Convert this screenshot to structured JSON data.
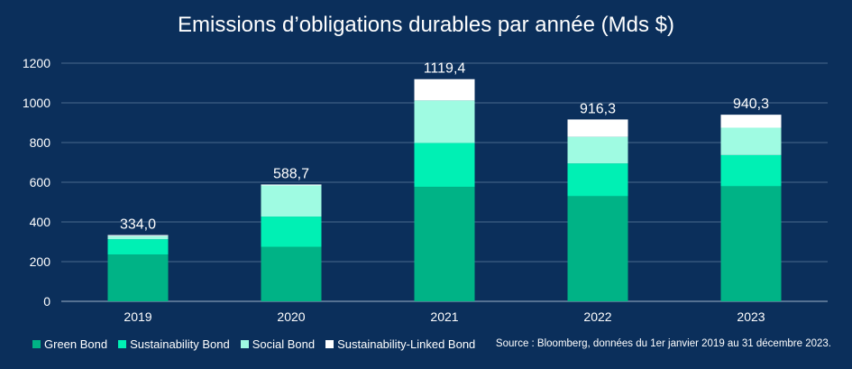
{
  "chart_data": {
    "type": "bar",
    "stacked": true,
    "title": "Emissions d’obligations durables par année (Mds $)",
    "categories": [
      "2019",
      "2020",
      "2021",
      "2022",
      "2023"
    ],
    "series": [
      {
        "name": "Green Bond",
        "color": "#00b386",
        "values": [
          236,
          275,
          577,
          530,
          580
        ]
      },
      {
        "name": "Sustainability Bond",
        "color": "#00f0b4",
        "values": [
          77,
          152,
          221,
          165,
          157
        ]
      },
      {
        "name": "Social Bond",
        "color": "#9ffbe2",
        "values": [
          16,
          157,
          214,
          134,
          138
        ]
      },
      {
        "name": "Sustainability-Linked Bond",
        "color": "#ffffff",
        "values": [
          5,
          4.7,
          107.4,
          87.3,
          65.3
        ]
      }
    ],
    "totals": [
      "334,0",
      "588,7",
      "1119,4",
      "916,3",
      "940,3"
    ],
    "y_ticks": [
      "0",
      "200",
      "400",
      "600",
      "800",
      "1000",
      "1200"
    ],
    "ylim": [
      0,
      1200
    ],
    "grid": true,
    "legend_position": "bottom-left"
  },
  "source": "Source : Bloomberg, données du 1er janvier 2019 au 31 décembre 2023."
}
